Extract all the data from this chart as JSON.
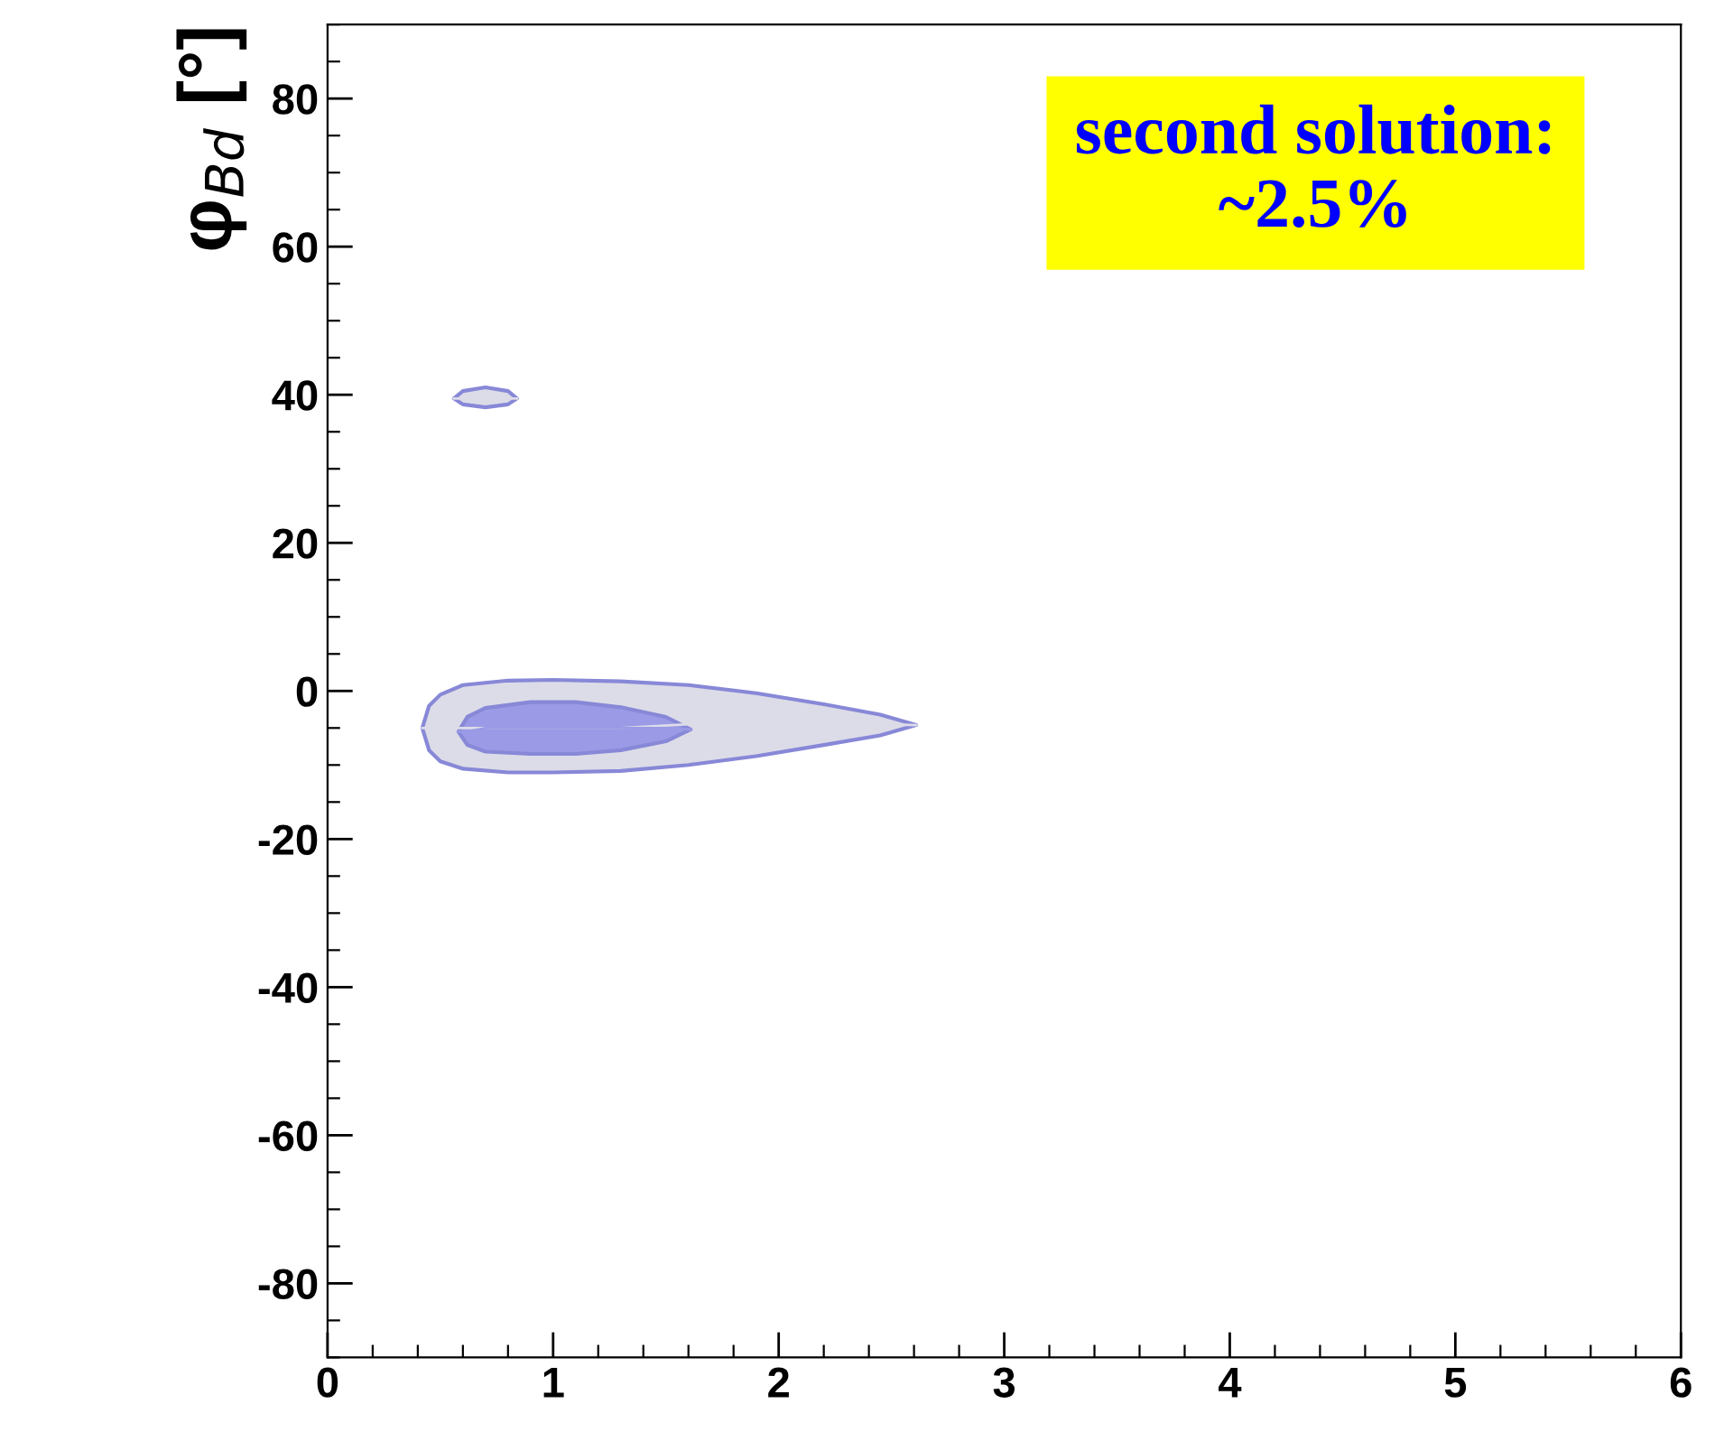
{
  "chart_data": {
    "type": "line",
    "ylabel": "φ$_{Bd}$ [°]",
    "annotations": [
      "second solution:\n~2.5%"
    ],
    "xlim": [
      0,
      6
    ],
    "ylim": [
      -90,
      90
    ],
    "xticks": [
      0,
      1,
      2,
      3,
      4,
      5,
      6
    ],
    "yticks": [
      -80,
      -60,
      -40,
      -20,
      0,
      20,
      40,
      60,
      80
    ],
    "grid": false,
    "legend": false,
    "series": [
      {
        "color": "#dcdce8",
        "x": [
          0.42,
          0.45,
          0.5,
          0.6,
          0.8,
          1.0,
          1.3,
          1.6,
          1.9,
          2.2,
          2.45,
          2.61
        ],
        "values": [
          -5,
          -5,
          -5,
          -5,
          -5,
          -5,
          -5,
          -4.5,
          -4.5,
          -4.5,
          -4.5,
          -4.6
        ],
        "upper": [
          -5,
          -2,
          -0.5,
          0.8,
          1.4,
          1.5,
          1.3,
          0.8,
          -0.3,
          -1.8,
          -3.2,
          -4.6
        ],
        "lower": [
          -5,
          -8,
          -9.5,
          -10.5,
          -11,
          -11,
          -10.8,
          -10,
          -8.8,
          -7.3,
          -6,
          -4.6
        ]
      },
      {
        "color": "#9a9ae6",
        "x": [
          0.58,
          0.62,
          0.7,
          0.9,
          1.1,
          1.3,
          1.5,
          1.61
        ],
        "values": [
          -5.5,
          -5.5,
          -5,
          -5,
          -5,
          -5,
          -5,
          -5.2
        ],
        "upper": [
          -5.5,
          -3.5,
          -2.3,
          -1.5,
          -1.5,
          -2.2,
          -3.5,
          -5.2
        ],
        "lower": [
          -5.5,
          -7.3,
          -8.2,
          -8.5,
          -8.5,
          -8,
          -6.8,
          -5.2
        ]
      },
      {
        "color": "#dcdce8",
        "x": [
          0.56,
          0.6,
          0.7,
          0.8,
          0.84
        ],
        "values": [
          39.5,
          39.5,
          39.5,
          39.5,
          39.5
        ],
        "upper": [
          39.5,
          40.5,
          41,
          40.5,
          39.5
        ],
        "lower": [
          39.5,
          38.7,
          38.3,
          38.7,
          39.5
        ]
      }
    ]
  }
}
